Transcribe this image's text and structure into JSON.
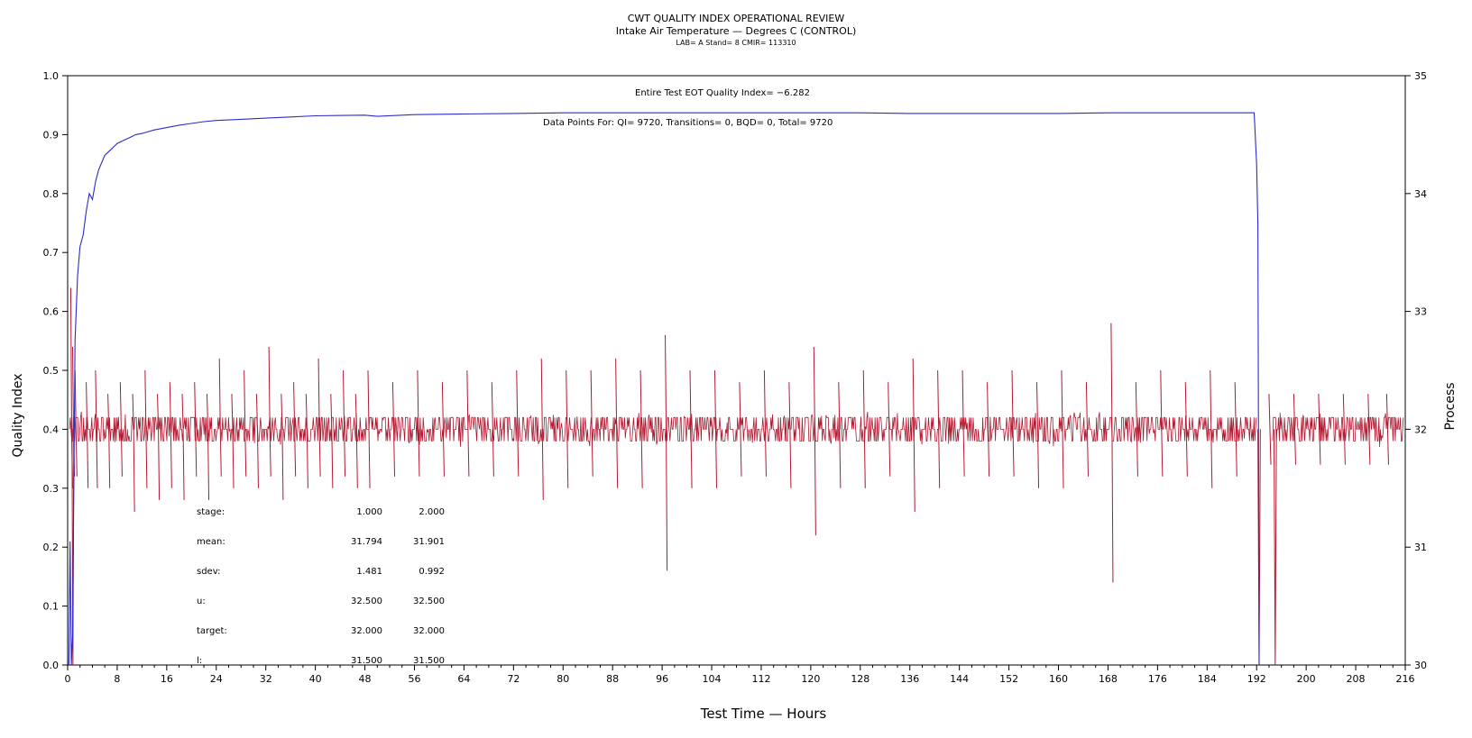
{
  "titles": {
    "main": "CWT QUALITY INDEX OPERATIONAL REVIEW",
    "sub": "Intake Air Temperature — Degrees C (CONTROL)",
    "meta": "LAB= A Stand= 8 CMIR= 113310"
  },
  "chart_data": {
    "type": "line",
    "title": "CWT QUALITY INDEX OPERATIONAL REVIEW",
    "xlabel": "Test Time — Hours",
    "ylabel": "Quality Index",
    "y2label": "Process",
    "xlim": [
      0,
      216
    ],
    "ylim": [
      0.0,
      1.0
    ],
    "y2lim": [
      30,
      35
    ],
    "xticks": [
      0,
      8,
      16,
      24,
      32,
      40,
      48,
      56,
      64,
      72,
      80,
      88,
      96,
      104,
      112,
      120,
      128,
      136,
      144,
      152,
      160,
      168,
      176,
      184,
      192,
      200,
      208,
      216
    ],
    "yticks": [
      "0.0",
      "0.1",
      "0.2",
      "0.3",
      "0.4",
      "0.5",
      "0.6",
      "0.7",
      "0.8",
      "0.9",
      "1.0"
    ],
    "y2ticks": [
      "30",
      "31",
      "32",
      "33",
      "34",
      "35"
    ],
    "grid": false,
    "annotations": {
      "eot": "Entire Test EOT Quality Index=  −6.282",
      "points": "Data Points For: QI=  9720, Transitions=      0, BQD=      0, Total=  9720"
    },
    "series": [
      {
        "axis": "left",
        "color": "#2c2cc8",
        "x": [
          0.2,
          0.4,
          0.6,
          0.8,
          1.2,
          1.6,
          2.0,
          2.5,
          3.0,
          3.5,
          4.0,
          4.5,
          5.0,
          6.0,
          7.0,
          8.0,
          9.0,
          10.0,
          11.0,
          12.0,
          13.0,
          14.0,
          16.0,
          18.0,
          20.0,
          22.0,
          24.0,
          28.0,
          32.0,
          36.0,
          40.0,
          48.0,
          50.0,
          56.0,
          64.0,
          72.0,
          80.0,
          88.0,
          96.0,
          104.0,
          112.0,
          120.0,
          128.0,
          136.0,
          144.0,
          152.0,
          160.0,
          168.0,
          176.0,
          184.0,
          190.0,
          191.6,
          192.0,
          192.2,
          192.4
        ],
        "values": [
          0.0,
          0.21,
          0.0,
          0.05,
          0.55,
          0.66,
          0.71,
          0.73,
          0.77,
          0.8,
          0.79,
          0.82,
          0.84,
          0.865,
          0.875,
          0.885,
          0.89,
          0.895,
          0.9,
          0.902,
          0.905,
          0.908,
          0.912,
          0.916,
          0.919,
          0.922,
          0.924,
          0.926,
          0.928,
          0.93,
          0.932,
          0.933,
          0.931,
          0.934,
          0.935,
          0.936,
          0.937,
          0.937,
          0.937,
          0.937,
          0.937,
          0.937,
          0.937,
          0.936,
          0.936,
          0.936,
          0.936,
          0.937,
          0.937,
          0.937,
          0.937,
          0.937,
          0.85,
          0.75,
          0.0
        ]
      },
      {
        "axis": "right",
        "color": "#b01830",
        "baseline": 32.0,
        "band": [
          31.9,
          32.1
        ],
        "gap": [
          192.0,
          194.5
        ],
        "spikes_x": [
          0.5,
          0.8,
          1.2,
          3.0,
          4.5,
          6.5,
          8.5,
          10.5,
          12.5,
          14.5,
          16.5,
          18.5,
          20.5,
          22.5,
          24.5,
          26.5,
          28.5,
          30.5,
          32.5,
          34.5,
          36.5,
          38.5,
          40.5,
          42.5,
          44.5,
          46.5,
          48.5,
          52.5,
          56.5,
          60.5,
          64.5,
          68.5,
          72.5,
          76.5,
          80.5,
          84.5,
          88.5,
          92.5,
          96.5,
          100.5,
          104.5,
          108.5,
          112.5,
          116.5,
          120.5,
          124.5,
          128.5,
          132.5,
          136.5,
          140.5,
          144.5,
          148.5,
          152.5,
          156.5,
          160.5,
          164.5,
          168.5,
          172.5,
          176.5,
          180.5,
          184.5,
          188.5,
          194.0,
          198.0,
          202.0,
          206.0,
          210.0,
          213.0
        ],
        "spikes_hi": [
          33.2,
          32.7,
          32.5,
          32.4,
          32.5,
          32.3,
          32.4,
          32.3,
          32.5,
          32.3,
          32.4,
          32.3,
          32.4,
          32.3,
          32.6,
          32.3,
          32.5,
          32.3,
          32.7,
          32.3,
          32.4,
          32.3,
          32.6,
          32.3,
          32.5,
          32.3,
          32.5,
          32.4,
          32.5,
          32.4,
          32.5,
          32.4,
          32.5,
          32.6,
          32.5,
          32.5,
          32.6,
          32.5,
          32.8,
          32.5,
          32.5,
          32.4,
          32.5,
          32.4,
          32.7,
          32.4,
          32.5,
          32.4,
          32.6,
          32.5,
          32.5,
          32.4,
          32.5,
          32.4,
          32.5,
          32.4,
          32.9,
          32.4,
          32.5,
          32.4,
          32.5,
          32.4,
          32.3,
          32.3,
          32.3,
          32.3,
          32.3,
          32.3
        ],
        "spikes_lo": [
          31.5,
          31.6,
          31.6,
          31.5,
          31.5,
          31.5,
          31.6,
          31.3,
          31.5,
          31.4,
          31.5,
          31.4,
          31.6,
          31.4,
          31.6,
          31.5,
          31.6,
          31.5,
          31.6,
          31.4,
          31.6,
          31.5,
          31.6,
          31.5,
          31.6,
          31.5,
          31.5,
          31.6,
          31.6,
          31.6,
          31.6,
          31.6,
          31.6,
          31.4,
          31.5,
          31.6,
          31.5,
          31.5,
          30.8,
          31.5,
          31.5,
          31.6,
          31.6,
          31.5,
          31.1,
          31.5,
          31.5,
          31.6,
          31.3,
          31.5,
          31.6,
          31.6,
          31.6,
          31.5,
          31.5,
          31.6,
          30.7,
          31.6,
          31.6,
          31.6,
          31.5,
          31.6,
          31.7,
          31.7,
          31.7,
          31.7,
          31.7,
          31.7
        ],
        "drops": [
          {
            "x1": 0.7,
            "x2": 1.0,
            "lo": 30.0
          },
          {
            "x1": 192.2,
            "x2": 192.6,
            "lo": 30.0
          },
          {
            "x1": 194.8,
            "x2": 195.2,
            "lo": 30.0
          }
        ]
      }
    ],
    "stats_table": {
      "rows": [
        {
          "label": "stage:",
          "v1": "1.000",
          "v2": "2.000"
        },
        {
          "label": "mean:",
          "v1": "31.794",
          "v2": "31.901"
        },
        {
          "label": "sdev:",
          "v1": "1.481",
          "v2": "0.992"
        },
        {
          "label": "u:",
          "v1": "32.500",
          "v2": "32.500"
        },
        {
          "label": "target:",
          "v1": "32.000",
          "v2": "32.000"
        },
        {
          "label": "l:",
          "v1": "31.500",
          "v2": "31.500"
        }
      ]
    }
  }
}
